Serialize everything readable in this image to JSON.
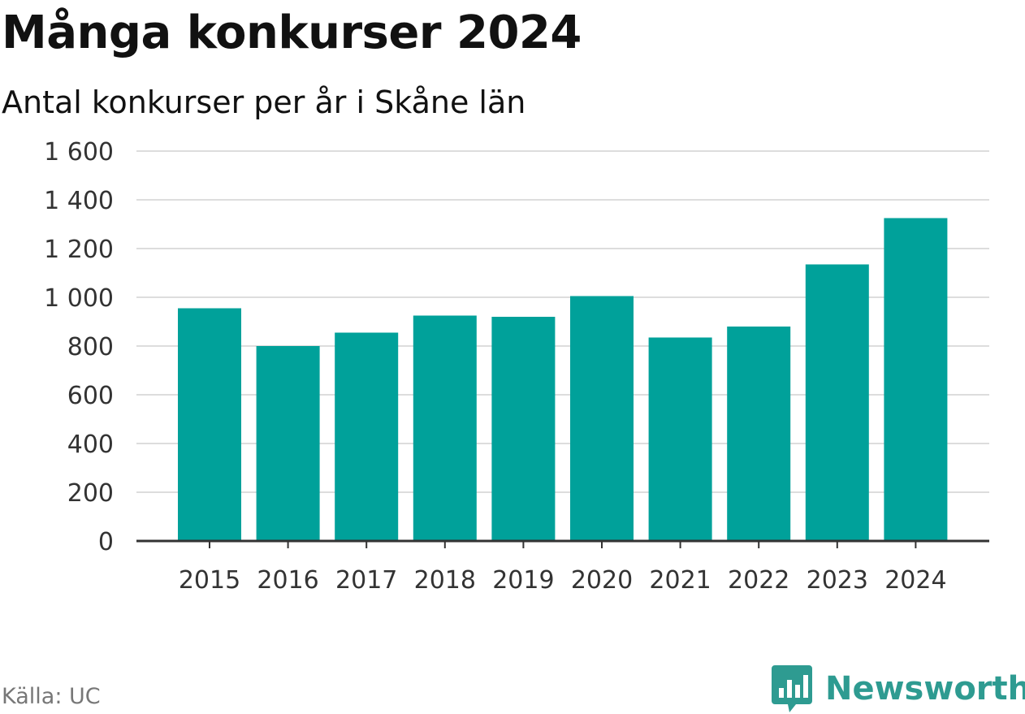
{
  "header": {
    "title": "Många konkurser 2024",
    "subtitle": "Antal konkurser per år i Skåne län"
  },
  "footer": {
    "source": "Källa: UC",
    "brand": "Newsworthy",
    "brand_icon": "newsworthy-logo-icon"
  },
  "colors": {
    "bar": "#00a19a",
    "grid": "#dddddd",
    "axis": "#333333",
    "brand": "#2e9b91"
  },
  "chart_data": {
    "type": "bar",
    "title": "Många konkurser 2024",
    "subtitle": "Antal konkurser per år i Skåne län",
    "categories": [
      "2015",
      "2016",
      "2017",
      "2018",
      "2019",
      "2020",
      "2021",
      "2022",
      "2023",
      "2024"
    ],
    "values": [
      955,
      800,
      855,
      925,
      920,
      1005,
      835,
      880,
      1135,
      1325
    ],
    "ylim": [
      0,
      1600
    ],
    "yticks": [
      0,
      200,
      400,
      600,
      800,
      1000,
      1200,
      1400,
      1600
    ],
    "ytick_labels": [
      "0",
      "200",
      "400",
      "600",
      "800",
      "1 000",
      "1 200",
      "1 400",
      "1 600"
    ],
    "grid": true,
    "legend": "none"
  }
}
